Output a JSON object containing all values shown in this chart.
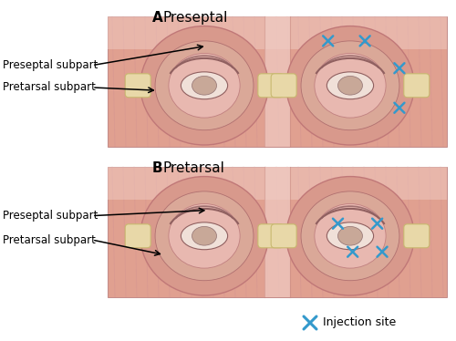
{
  "panel_A_title_bold": "A",
  "panel_A_title_normal": "Preseptal",
  "panel_B_title_bold": "B",
  "panel_B_title_normal": "Pretarsal",
  "label_preseptal": "Preseptal subpart",
  "label_pretarsal": "Pretarsal subpart",
  "legend_label": "Injection site",
  "bg_color": "#ffffff",
  "panel_bg": "#e8b0a8",
  "skin_base": "#e0a090",
  "skin_light": "#ebb8ae",
  "skin_lighter": "#f0ccc4",
  "skin_deep": "#c88880",
  "muscle_stripe": "#d09090",
  "muscle_dark": "#c07878",
  "orbital_outer": "#d8998c",
  "orbital_ring": "#cc8880",
  "preseptal_fill": "#daa898",
  "pretarsal_fill": "#e8b8b0",
  "lid_color": "#f0d0c8",
  "tendon_fill": "#e8d8a8",
  "tendon_edge": "#c8b870",
  "nose_col": "#c88880",
  "injection_color": "#3399cc",
  "line_color": "#000000",
  "title_fontsize": 11,
  "label_fontsize": 8.5,
  "legend_fontsize": 9
}
